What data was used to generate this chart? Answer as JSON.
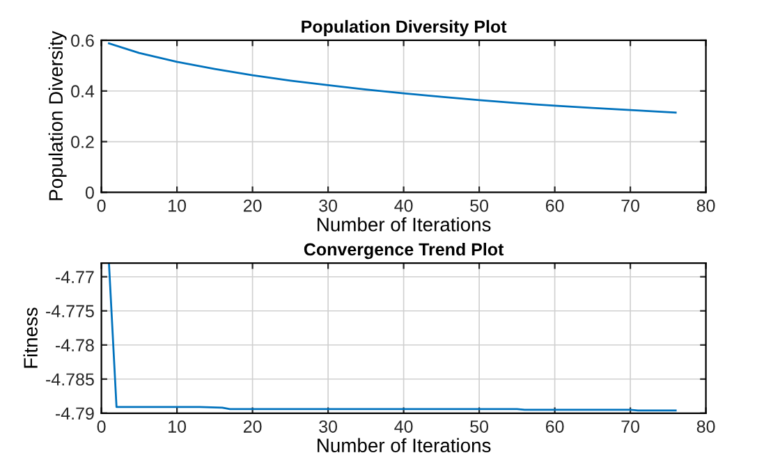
{
  "chart_data": [
    {
      "type": "line",
      "title": "Population Diversity Plot",
      "xlabel": "Number of Iterations",
      "ylabel": "Population Diversity",
      "x": [
        1,
        5,
        10,
        15,
        20,
        25,
        30,
        35,
        40,
        45,
        50,
        55,
        60,
        65,
        70,
        76
      ],
      "series": [
        {
          "color": "#0072bd",
          "values": [
            0.588,
            0.55,
            0.515,
            0.487,
            0.462,
            0.441,
            0.423,
            0.406,
            0.391,
            0.377,
            0.364,
            0.352,
            0.342,
            0.333,
            0.325,
            0.315
          ]
        }
      ],
      "xlim": [
        0,
        80
      ],
      "xticks": [
        0,
        10,
        20,
        30,
        40,
        50,
        60,
        70,
        80
      ],
      "ylim": [
        0,
        0.6
      ],
      "yticks": [
        0,
        0.2,
        0.4,
        0.6
      ],
      "grid": true
    },
    {
      "type": "line",
      "title": "Convergence Trend Plot",
      "xlabel": "Number of Iterations",
      "ylabel": "Fitness",
      "x": [
        1,
        2,
        13,
        16,
        17,
        40,
        55,
        56,
        70,
        71,
        76
      ],
      "series": [
        {
          "color": "#0072bd",
          "values": [
            -4.768,
            -4.7891,
            -4.7891,
            -4.7892,
            -4.7894,
            -4.7894,
            -4.7894,
            -4.7895,
            -4.7895,
            -4.7896,
            -4.7896
          ]
        }
      ],
      "xlim": [
        0,
        80
      ],
      "xticks": [
        0,
        10,
        20,
        30,
        40,
        50,
        60,
        70,
        80
      ],
      "ylim": [
        -4.79,
        -4.768
      ],
      "yticks": [
        -4.79,
        -4.785,
        -4.78,
        -4.775,
        -4.77
      ],
      "grid": true
    }
  ]
}
